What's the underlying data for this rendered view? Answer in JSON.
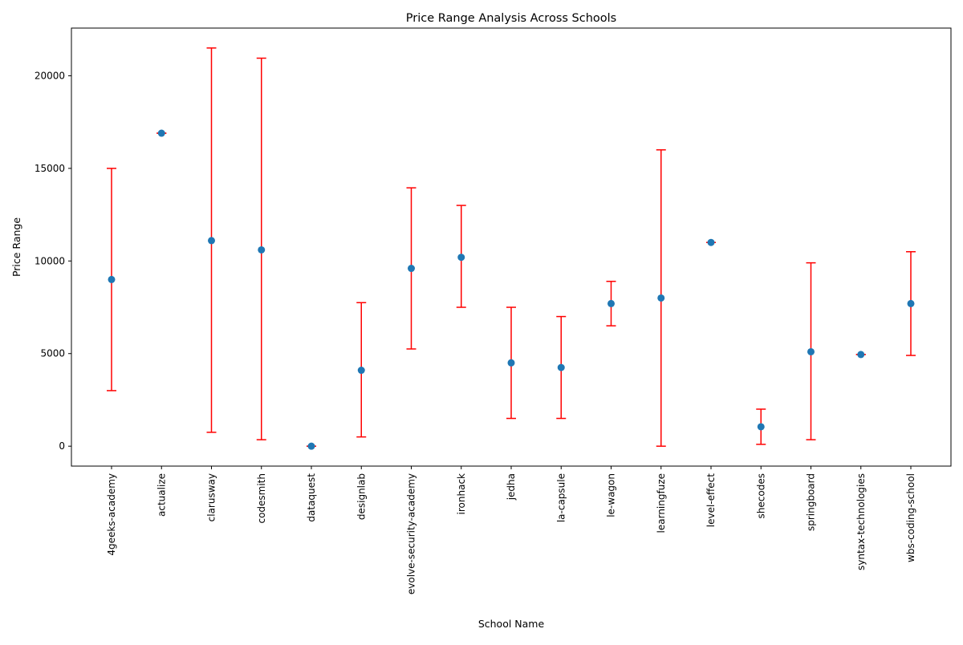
{
  "chart_data": {
    "type": "scatter",
    "title": "Price Range Analysis Across Schools",
    "xlabel": "School Name",
    "ylabel": "Price Range",
    "categories": [
      "4geeks-academy",
      "actualize",
      "clarusway",
      "codesmith",
      "dataquest",
      "designlab",
      "evolve-security-academy",
      "ironhack",
      "jedha",
      "la-capsule",
      "le-wagon",
      "learningfuze",
      "level-effect",
      "shecodes",
      "springboard",
      "syntax-technologies",
      "wbs-coding-school"
    ],
    "values": [
      9000,
      16900,
      11100,
      10600,
      0,
      4100,
      9600,
      10200,
      4500,
      4250,
      7700,
      8000,
      11000,
      1050,
      5100,
      4950,
      7700
    ],
    "error_low": [
      3000,
      16900,
      750,
      350,
      0,
      500,
      5250,
      7500,
      1500,
      1500,
      6500,
      0,
      11000,
      100,
      350,
      4950,
      4900
    ],
    "error_high": [
      15000,
      16900,
      21500,
      20950,
      0,
      7750,
      13950,
      13000,
      7500,
      7000,
      8900,
      16000,
      11000,
      2000,
      9900,
      4950,
      10500
    ],
    "y_ticks": [
      0,
      5000,
      10000,
      15000,
      20000
    ],
    "ylim": [
      -1075,
      22575
    ],
    "grid": false,
    "marker_color": "#1f77b4",
    "error_color": "#ff0000"
  }
}
